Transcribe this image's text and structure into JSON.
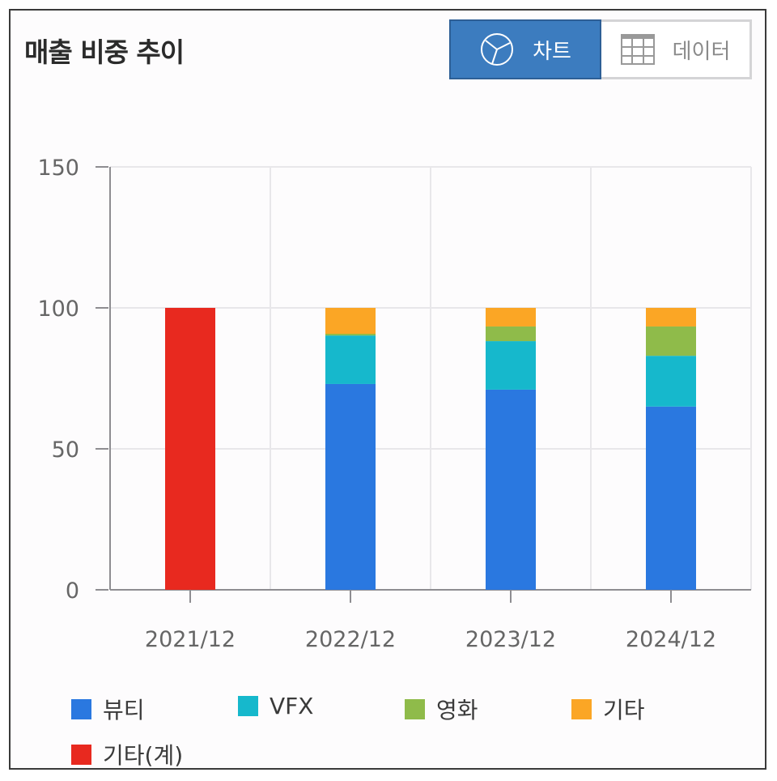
{
  "header": {
    "title": "매출 비중 추이",
    "toggle": [
      {
        "label": "차트",
        "icon": "pie-chart-icon",
        "active": true
      },
      {
        "label": "데이터",
        "icon": "table-grid-icon",
        "active": false
      }
    ]
  },
  "colors": {
    "뷰티": "#2a78e0",
    "VFX": "#16b8cc",
    "영화": "#8fbb4a",
    "기타": "#fba625",
    "기타(계)": "#e8291f"
  },
  "chart_data": {
    "type": "bar",
    "stacked": true,
    "title": "매출 비중 추이",
    "xlabel": "",
    "ylabel": "",
    "ylim": [
      0,
      150
    ],
    "yticks": [
      0,
      50,
      100,
      150
    ],
    "grid": true,
    "legend_position": "bottom",
    "categories": [
      "2021/12",
      "2022/12",
      "2023/12",
      "2024/12"
    ],
    "series": [
      {
        "name": "뷰티",
        "color": "#2a78e0",
        "values": [
          0,
          73,
          71,
          65
        ]
      },
      {
        "name": "VFX",
        "color": "#16b8cc",
        "values": [
          0,
          17.2,
          17.2,
          18
        ]
      },
      {
        "name": "영화",
        "color": "#8fbb4a",
        "values": [
          0,
          0.6,
          5.2,
          10.4
        ]
      },
      {
        "name": "기타",
        "color": "#fba625",
        "values": [
          0,
          9.2,
          6.6,
          6.6
        ]
      },
      {
        "name": "기타(계)",
        "color": "#e8291f",
        "values": [
          100,
          0,
          0,
          0
        ]
      }
    ]
  },
  "legend": [
    {
      "label": "뷰티",
      "color": "#2a78e0"
    },
    {
      "label": "VFX",
      "color": "#16b8cc"
    },
    {
      "label": "영화",
      "color": "#8fbb4a"
    },
    {
      "label": "기타",
      "color": "#fba625"
    },
    {
      "label": "기타(계)",
      "color": "#e8291f"
    }
  ]
}
